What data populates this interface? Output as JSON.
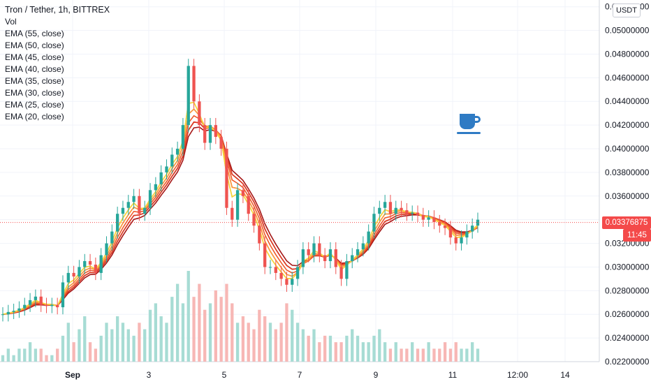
{
  "legend": {
    "title": "Tron / Tether, 1h, BITTREX",
    "vol": "Vol",
    "emas": [
      "EMA (55, close)",
      "EMA (50, close)",
      "EMA (45, close)",
      "EMA (40, close)",
      "EMA (35, close)",
      "EMA (30, close)",
      "EMA (25, close)",
      "EMA (20, close)"
    ]
  },
  "currency_button": "USDT",
  "last_price": "0.03376875",
  "countdown": "11:45",
  "icons": {
    "currency": "usdt-button",
    "watermark": "coffee-cup-icon"
  },
  "colors": {
    "up": "#26a69a",
    "down": "#ef5350",
    "vol_up": "#a7dcd4",
    "vol_down": "#f7b7b5",
    "ema": [
      "#a51717",
      "#c4281c",
      "#dc3a22",
      "#ee5a2a",
      "#f57a35",
      "#f99a3f",
      "#fbbb48",
      "#f5d63c"
    ],
    "price_line": "#f44a4a",
    "grid": "#f0f3fa",
    "cup": "#2f7bc4"
  },
  "chart_data": {
    "type": "candlestick",
    "title": "Tron / Tether, 1h, BITTREX",
    "y_ticks": [
      "0.05200000",
      "0.05000000",
      "0.04800000",
      "0.04600000",
      "0.04400000",
      "0.04200000",
      "0.04000000",
      "0.03800000",
      "0.03600000",
      "0.03400000",
      "0.03200000",
      "0.03000000",
      "0.02800000",
      "0.02600000",
      "0.02400000",
      "0.02200000"
    ],
    "ylim": [
      0.022,
      0.0521
    ],
    "x_ticks": [
      "Sep",
      "3",
      "5",
      "7",
      "9",
      "11",
      "12:00",
      "14"
    ],
    "last_price": 0.03376875,
    "series_close": [
      0.026,
      0.0262,
      0.0263,
      0.0265,
      0.0268,
      0.0272,
      0.0275,
      0.0268,
      0.0267,
      0.0268,
      0.0266,
      0.0287,
      0.0295,
      0.0292,
      0.03,
      0.0305,
      0.0302,
      0.0295,
      0.031,
      0.032,
      0.033,
      0.0345,
      0.035,
      0.0355,
      0.036,
      0.0345,
      0.035,
      0.0365,
      0.037,
      0.038,
      0.0385,
      0.0395,
      0.04,
      0.042,
      0.047,
      0.044,
      0.042,
      0.0405,
      0.042,
      0.041,
      0.04,
      0.035,
      0.034,
      0.0365,
      0.036,
      0.0345,
      0.0335,
      0.032,
      0.03,
      0.03,
      0.0295,
      0.029,
      0.0285,
      0.029,
      0.03,
      0.0315,
      0.031,
      0.032,
      0.031,
      0.0305,
      0.0315,
      0.03,
      0.029,
      0.0305,
      0.031,
      0.0315,
      0.032,
      0.033,
      0.0345,
      0.035,
      0.0355,
      0.0345,
      0.035,
      0.0348,
      0.0345,
      0.0346,
      0.0344,
      0.034,
      0.0342,
      0.0338,
      0.0335,
      0.0333,
      0.0325,
      0.032,
      0.0325,
      0.033,
      0.0335,
      0.034
    ],
    "series_volume": [
      1,
      2,
      1,
      2,
      2,
      3,
      2,
      2,
      1,
      1,
      2,
      4,
      6,
      3,
      5,
      7,
      3,
      2,
      4,
      6,
      5,
      7,
      6,
      5,
      4,
      6,
      5,
      8,
      9,
      7,
      6,
      10,
      12,
      9,
      14,
      10,
      12,
      8,
      9,
      11,
      10,
      12,
      9,
      6,
      7,
      6,
      5,
      8,
      7,
      6,
      5,
      6,
      9,
      8,
      6,
      5,
      4,
      5,
      3,
      4,
      4,
      3,
      3,
      4,
      5,
      4,
      3,
      3,
      4,
      5,
      3,
      2,
      3,
      2,
      2,
      3,
      2,
      2,
      3,
      2,
      2,
      3,
      2,
      3,
      2,
      2,
      3,
      2
    ],
    "legend": [
      "Vol",
      "EMA (55, close)",
      "EMA (50, close)",
      "EMA (45, close)",
      "EMA (40, close)",
      "EMA (35, close)",
      "EMA (30, close)",
      "EMA (25, close)",
      "EMA (20, close)"
    ],
    "grid": true,
    "legend_position": "top-left"
  }
}
